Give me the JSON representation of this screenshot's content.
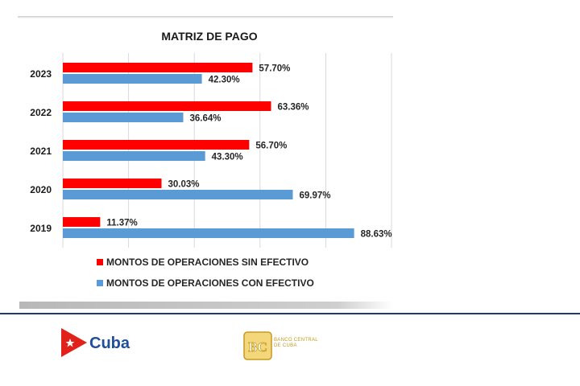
{
  "chart_data": {
    "type": "bar",
    "orientation": "horizontal",
    "title": "MATRIZ DE PAGO",
    "categories": [
      "2023",
      "2022",
      "2021",
      "2020",
      "2019"
    ],
    "series": [
      {
        "name": "MONTOS DE OPERACIONES SIN EFECTIVO",
        "color": "#ff0000",
        "values": [
          57.7,
          63.36,
          56.7,
          30.03,
          11.37
        ],
        "labels": [
          "57.70%",
          "63.36%",
          "56.70%",
          "30.03%",
          "11.37%"
        ]
      },
      {
        "name": "MONTOS DE OPERACIONES CON EFECTIVO",
        "color": "#5b9bd5",
        "values": [
          42.3,
          36.64,
          43.3,
          69.97,
          88.63
        ],
        "labels": [
          "42.30%",
          "36.64%",
          "43.30%",
          "69.97%",
          "88.63%"
        ]
      }
    ],
    "xlim": [
      0,
      100
    ],
    "grid": true,
    "legend_position": "bottom"
  },
  "footer": {
    "cuba_logo_text": "Cuba",
    "bank_logo_text": "BANCO CENTRAL DE CUBA",
    "bank_monogram": "BC",
    "divider_color": "#1f3a6b"
  }
}
